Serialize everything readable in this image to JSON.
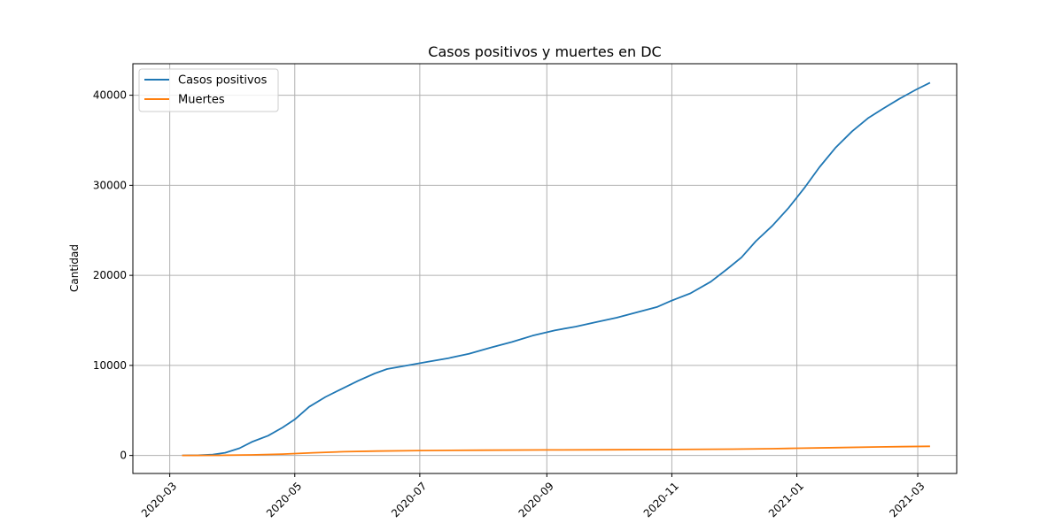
{
  "chart_data": {
    "type": "line",
    "title": "Casos positivos y muertes en DC",
    "xlabel": "",
    "ylabel": "Cantidad",
    "xlim": [
      "2020-02-12",
      "2021-03-20"
    ],
    "ylim": [
      -2000,
      43500
    ],
    "grid": true,
    "legend_position": "top-left",
    "x_ticks": [
      "2020-03-01",
      "2020-05-01",
      "2020-07-01",
      "2020-09-01",
      "2020-11-01",
      "2021-01-01",
      "2021-03-01"
    ],
    "x_tick_labels": [
      "2020-03",
      "2020-05",
      "2020-07",
      "2020-09",
      "2020-11",
      "2021-01",
      "2021-03"
    ],
    "y_ticks": [
      0,
      10000,
      20000,
      30000,
      40000
    ],
    "y_tick_labels": [
      "0",
      "10000",
      "20000",
      "30000",
      "40000"
    ],
    "series": [
      {
        "name": "Casos positivos",
        "color": "#1f77b4",
        "points": [
          [
            "2020-03-07",
            0
          ],
          [
            "2020-03-15",
            20
          ],
          [
            "2020-03-22",
            100
          ],
          [
            "2020-03-28",
            300
          ],
          [
            "2020-04-04",
            800
          ],
          [
            "2020-04-10",
            1500
          ],
          [
            "2020-04-18",
            2200
          ],
          [
            "2020-04-25",
            3100
          ],
          [
            "2020-05-01",
            4000
          ],
          [
            "2020-05-08",
            5400
          ],
          [
            "2020-05-16",
            6500
          ],
          [
            "2020-05-24",
            7400
          ],
          [
            "2020-06-01",
            8300
          ],
          [
            "2020-06-09",
            9100
          ],
          [
            "2020-06-15",
            9600
          ],
          [
            "2020-06-25",
            10000
          ],
          [
            "2020-07-05",
            10400
          ],
          [
            "2020-07-15",
            10800
          ],
          [
            "2020-07-25",
            11300
          ],
          [
            "2020-08-05",
            12000
          ],
          [
            "2020-08-15",
            12600
          ],
          [
            "2020-08-25",
            13300
          ],
          [
            "2020-09-05",
            13900
          ],
          [
            "2020-09-15",
            14300
          ],
          [
            "2020-09-25",
            14800
          ],
          [
            "2020-10-05",
            15300
          ],
          [
            "2020-10-15",
            15900
          ],
          [
            "2020-10-25",
            16500
          ],
          [
            "2020-11-01",
            17200
          ],
          [
            "2020-11-10",
            18000
          ],
          [
            "2020-11-20",
            19300
          ],
          [
            "2020-11-28",
            20700
          ],
          [
            "2020-12-05",
            22000
          ],
          [
            "2020-12-12",
            23800
          ],
          [
            "2020-12-20",
            25500
          ],
          [
            "2020-12-28",
            27500
          ],
          [
            "2021-01-05",
            29800
          ],
          [
            "2021-01-12",
            32000
          ],
          [
            "2021-01-20",
            34200
          ],
          [
            "2021-01-28",
            36000
          ],
          [
            "2021-02-05",
            37500
          ],
          [
            "2021-02-12",
            38500
          ],
          [
            "2021-02-20",
            39600
          ],
          [
            "2021-02-28",
            40600
          ],
          [
            "2021-03-07",
            41400
          ]
        ]
      },
      {
        "name": "Muertes",
        "color": "#ff7f0e",
        "points": [
          [
            "2020-03-07",
            0
          ],
          [
            "2020-03-25",
            10
          ],
          [
            "2020-04-10",
            60
          ],
          [
            "2020-04-25",
            150
          ],
          [
            "2020-05-10",
            300
          ],
          [
            "2020-05-25",
            420
          ],
          [
            "2020-06-10",
            490
          ],
          [
            "2020-07-01",
            550
          ],
          [
            "2020-08-01",
            580
          ],
          [
            "2020-09-01",
            610
          ],
          [
            "2020-10-01",
            630
          ],
          [
            "2020-11-01",
            660
          ],
          [
            "2020-12-01",
            700
          ],
          [
            "2020-12-20",
            750
          ],
          [
            "2021-01-01",
            800
          ],
          [
            "2021-01-20",
            870
          ],
          [
            "2021-02-10",
            950
          ],
          [
            "2021-03-07",
            1020
          ]
        ]
      }
    ]
  }
}
